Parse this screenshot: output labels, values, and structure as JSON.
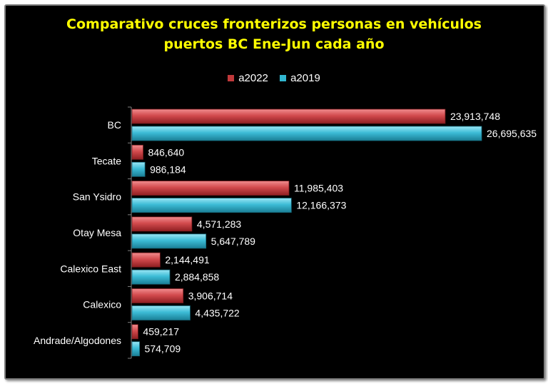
{
  "chart_data": {
    "type": "bar",
    "orientation": "horizontal",
    "title_line1": "Comparativo cruces fronterizos personas en vehículos",
    "title_line2": "puertos BC Ene-Jun cada año",
    "xlabel": "",
    "ylabel": "",
    "xlim": [
      0,
      30000000
    ],
    "grid": false,
    "legend_position": "top",
    "categories": [
      "BC",
      "Tecate",
      "San Ysidro",
      "Otay Mesa",
      "Calexico East",
      "Calexico",
      "Andrade/Algodones"
    ],
    "series": [
      {
        "name": "a2022",
        "color": "#c0393b",
        "values": [
          23913748,
          846640,
          11985403,
          4571283,
          2144491,
          3906714,
          459217
        ],
        "labels": [
          "23,913,748",
          "846,640",
          "11,985,403",
          "4,571,283",
          "2,144,491",
          "3,906,714",
          "459,217"
        ]
      },
      {
        "name": "a2019",
        "color": "#31b6cf",
        "values": [
          26695635,
          986184,
          12166373,
          5647789,
          2884858,
          4435722,
          574709
        ],
        "labels": [
          "26,695,635",
          "986,184",
          "12,166,373",
          "5,647,789",
          "2,884,858",
          "4,435,722",
          "574,709"
        ]
      }
    ]
  }
}
